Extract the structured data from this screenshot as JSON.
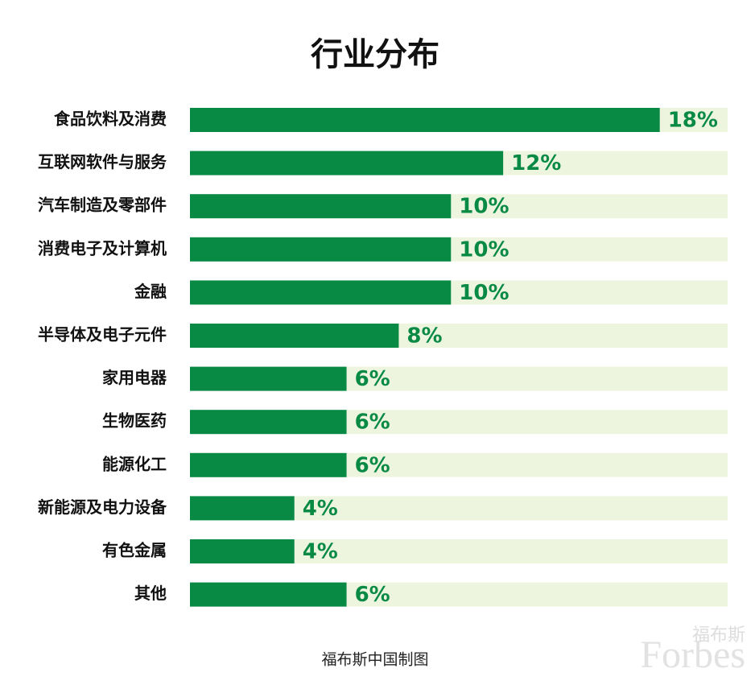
{
  "chart_data": {
    "type": "hbar",
    "title": "行业分布",
    "categories": [
      "食品饮料及消费",
      "互联网软件与服务",
      "汽车制造及零部件",
      "消费电子及计算机",
      "金融",
      "半导体及电子元件",
      "家用电器",
      "生物医药",
      "能源化工",
      "新能源及电力设备",
      "有色金属",
      "其他"
    ],
    "values": [
      18,
      12,
      10,
      10,
      10,
      8,
      6,
      6,
      6,
      4,
      4,
      6
    ],
    "value_labels": [
      "18%",
      "12%",
      "10%",
      "10%",
      "10%",
      "8%",
      "6%",
      "6%",
      "6%",
      "4%",
      "4%",
      "6%"
    ],
    "color": "#088a45",
    "track_color": "#eef5df",
    "xlim": [
      0,
      20.6
    ],
    "source": "福布斯中国制图",
    "watermark": [
      "福布斯",
      "Forbes"
    ]
  }
}
